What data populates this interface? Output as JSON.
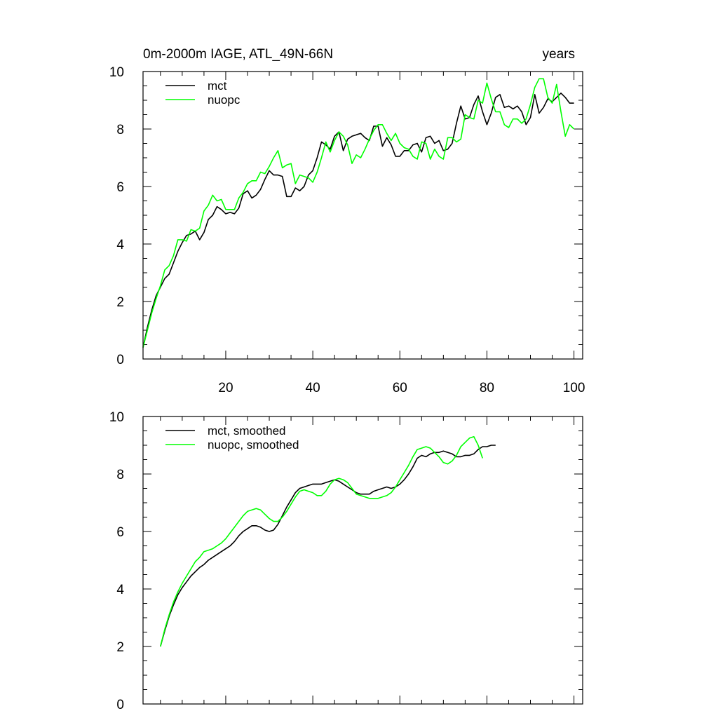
{
  "chart_data": [
    {
      "type": "line",
      "title": "0m-2000m IAGE, ATL_49N-66N",
      "title_right": "years",
      "xlim": [
        1,
        102
      ],
      "ylim": [
        0,
        10
      ],
      "xticks": [
        20,
        40,
        60,
        80,
        100
      ],
      "yticks": [
        0,
        2,
        4,
        6,
        8,
        10
      ],
      "show_x_tick_labels": true,
      "legend_position": "top-left",
      "grid": false,
      "series": [
        {
          "name": "mct",
          "color": "#000000",
          "x_start": 1,
          "values": [
            0.4,
            1.1,
            1.7,
            2.2,
            2.5,
            2.8,
            2.95,
            3.35,
            3.75,
            4.05,
            4.3,
            4.35,
            4.45,
            4.15,
            4.4,
            4.85,
            5.0,
            5.3,
            5.2,
            5.05,
            5.1,
            5.05,
            5.25,
            5.75,
            5.85,
            5.6,
            5.7,
            5.9,
            6.25,
            6.55,
            6.4,
            6.4,
            6.35,
            5.65,
            5.65,
            5.95,
            5.85,
            6.0,
            6.4,
            6.55,
            7.0,
            7.55,
            7.45,
            7.3,
            7.75,
            7.9,
            7.25,
            7.65,
            7.75,
            7.8,
            7.85,
            7.7,
            7.6,
            8.1,
            8.1,
            7.4,
            7.7,
            7.45,
            7.05,
            7.05,
            7.25,
            7.25,
            7.45,
            7.5,
            7.2,
            7.7,
            7.75,
            7.5,
            7.6,
            7.25,
            7.3,
            7.5,
            8.2,
            8.8,
            8.35,
            8.4,
            8.85,
            9.15,
            8.6,
            8.15,
            8.55,
            9.1,
            9.2,
            8.75,
            8.8,
            8.7,
            8.8,
            8.6,
            8.15,
            8.4,
            9.2,
            8.55,
            8.75,
            9.05,
            8.95,
            9.1,
            9.25,
            9.1,
            8.9,
            8.9
          ]
        },
        {
          "name": "nuopc",
          "color": "#00ff00",
          "x_start": 1,
          "values": [
            0.4,
            1.0,
            1.6,
            2.1,
            2.55,
            3.1,
            3.25,
            3.6,
            4.15,
            4.15,
            4.1,
            4.5,
            4.45,
            4.55,
            5.15,
            5.35,
            5.7,
            5.5,
            5.55,
            5.2,
            5.2,
            5.2,
            5.6,
            5.8,
            6.1,
            6.2,
            6.2,
            6.5,
            6.45,
            6.7,
            7.0,
            7.25,
            6.65,
            6.75,
            6.8,
            6.1,
            6.4,
            6.35,
            6.3,
            6.15,
            6.5,
            7.0,
            7.55,
            7.2,
            7.6,
            7.9,
            7.75,
            7.45,
            6.8,
            7.1,
            7.0,
            7.3,
            7.65,
            7.95,
            8.15,
            8.15,
            7.85,
            7.6,
            7.85,
            7.5,
            7.35,
            7.3,
            7.05,
            6.95,
            7.55,
            7.5,
            6.95,
            7.3,
            7.05,
            6.95,
            7.7,
            7.7,
            7.55,
            7.65,
            8.5,
            8.4,
            8.35,
            9.0,
            8.9,
            9.6,
            9.05,
            8.6,
            8.6,
            8.15,
            8.05,
            8.35,
            8.35,
            8.2,
            8.35,
            8.85,
            9.45,
            9.75,
            9.75,
            9.1,
            8.9,
            9.55,
            8.6,
            7.75,
            8.15,
            8.0
          ]
        }
      ]
    },
    {
      "type": "line",
      "title": "",
      "xlim": [
        1,
        102
      ],
      "ylim": [
        0,
        10
      ],
      "xticks": [
        20,
        40,
        60,
        80,
        100
      ],
      "yticks": [
        0,
        2,
        4,
        6,
        8,
        10
      ],
      "show_x_tick_labels": false,
      "legend_position": "top-left",
      "grid": false,
      "series": [
        {
          "name": "mct, smoothed",
          "color": "#000000",
          "x_start": 5,
          "values": [
            2.0,
            2.55,
            3.05,
            3.45,
            3.8,
            4.05,
            4.25,
            4.45,
            4.6,
            4.75,
            4.85,
            5.0,
            5.1,
            5.2,
            5.3,
            5.4,
            5.5,
            5.65,
            5.85,
            6.0,
            6.1,
            6.2,
            6.2,
            6.15,
            6.05,
            6.0,
            6.05,
            6.25,
            6.55,
            6.85,
            7.1,
            7.35,
            7.5,
            7.55,
            7.6,
            7.65,
            7.65,
            7.65,
            7.7,
            7.75,
            7.8,
            7.75,
            7.65,
            7.55,
            7.45,
            7.35,
            7.3,
            7.3,
            7.3,
            7.4,
            7.45,
            7.5,
            7.55,
            7.5,
            7.55,
            7.65,
            7.8,
            8.0,
            8.25,
            8.55,
            8.65,
            8.6,
            8.7,
            8.75,
            8.75,
            8.8,
            8.75,
            8.7,
            8.6,
            8.6,
            8.65,
            8.65,
            8.7,
            8.85,
            8.95,
            8.95,
            9.0,
            9.0
          ]
        },
        {
          "name": "nuopc, smoothed",
          "color": "#00ff00",
          "x_start": 5,
          "values": [
            2.0,
            2.6,
            3.1,
            3.55,
            3.9,
            4.2,
            4.45,
            4.7,
            4.95,
            5.1,
            5.3,
            5.35,
            5.4,
            5.5,
            5.6,
            5.75,
            5.95,
            6.15,
            6.35,
            6.55,
            6.7,
            6.75,
            6.8,
            6.75,
            6.6,
            6.45,
            6.35,
            6.35,
            6.5,
            6.7,
            6.95,
            7.2,
            7.4,
            7.45,
            7.4,
            7.35,
            7.25,
            7.25,
            7.4,
            7.65,
            7.8,
            7.85,
            7.8,
            7.7,
            7.5,
            7.3,
            7.25,
            7.2,
            7.15,
            7.15,
            7.15,
            7.2,
            7.25,
            7.35,
            7.55,
            7.8,
            8.05,
            8.3,
            8.6,
            8.85,
            8.9,
            8.95,
            8.9,
            8.75,
            8.6,
            8.4,
            8.35,
            8.45,
            8.65,
            8.95,
            9.1,
            9.25,
            9.3,
            9.0,
            8.55
          ]
        }
      ]
    }
  ]
}
